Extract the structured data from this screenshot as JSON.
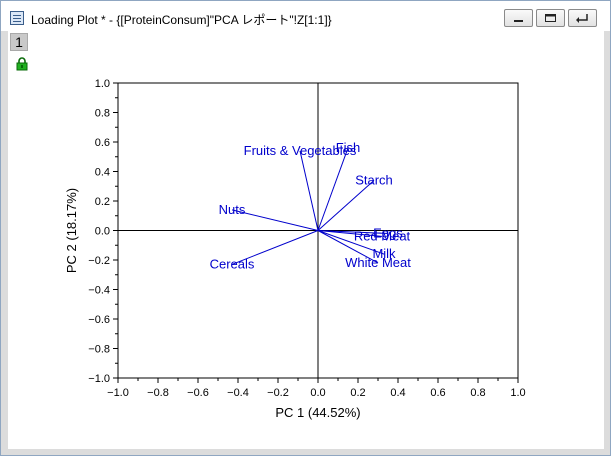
{
  "window": {
    "title": "Loading Plot * - {[ProteinConsum]\"PCA レポート\"!Z[1:1]}",
    "controls": [
      "minimize-icon",
      "restore-icon",
      "back-icon"
    ]
  },
  "layer_tab": {
    "label": "1"
  },
  "chart_data": {
    "type": "scatter",
    "title": "",
    "xlabel": "PC 1 (44.52%)",
    "ylabel": "PC 2 (18.17%)",
    "xlim": [
      -1.0,
      1.0
    ],
    "ylim": [
      -1.0,
      1.0
    ],
    "xticks": [
      "−1.0",
      "−0.8",
      "−0.6",
      "−0.4",
      "−0.2",
      "0.0",
      "0.2",
      "0.4",
      "0.6",
      "0.8",
      "1.0"
    ],
    "yticks": [
      "−1.0",
      "−0.8",
      "−0.6",
      "−0.4",
      "−0.2",
      "0.0",
      "0.2",
      "0.4",
      "0.6",
      "0.8",
      "1.0"
    ],
    "grid": false,
    "color": "#0000cc",
    "series": [
      {
        "name": "Fish",
        "x": 0.15,
        "y": 0.56
      },
      {
        "name": "Fruits & Vegetables",
        "x": -0.09,
        "y": 0.54
      },
      {
        "name": "Starch",
        "x": 0.28,
        "y": 0.34
      },
      {
        "name": "Nuts",
        "x": -0.43,
        "y": 0.14
      },
      {
        "name": "Eggs",
        "x": 0.35,
        "y": -0.02
      },
      {
        "name": "Red Meat",
        "x": 0.32,
        "y": -0.04
      },
      {
        "name": "Milk",
        "x": 0.33,
        "y": -0.16
      },
      {
        "name": "White Meat",
        "x": 0.3,
        "y": -0.22
      },
      {
        "name": "Cereals",
        "x": -0.43,
        "y": -0.23
      }
    ]
  }
}
